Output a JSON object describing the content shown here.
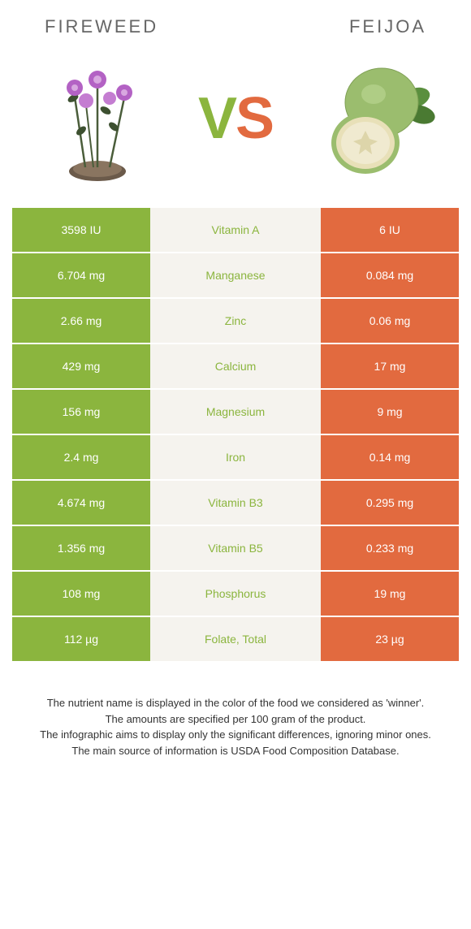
{
  "header": {
    "left_title": "FIREWEED",
    "right_title": "FEIJOA"
  },
  "vs": {
    "v": "V",
    "s": "S"
  },
  "colors": {
    "green": "#8bb53e",
    "orange": "#e26a3f",
    "mid_bg": "#f5f3ee",
    "text_gray": "#666666"
  },
  "table": {
    "rows": [
      {
        "left": "3598 IU",
        "nutrient": "Vitamin A",
        "right": "6 IU",
        "winner": "left"
      },
      {
        "left": "6.704 mg",
        "nutrient": "Manganese",
        "right": "0.084 mg",
        "winner": "left"
      },
      {
        "left": "2.66 mg",
        "nutrient": "Zinc",
        "right": "0.06 mg",
        "winner": "left"
      },
      {
        "left": "429 mg",
        "nutrient": "Calcium",
        "right": "17 mg",
        "winner": "left"
      },
      {
        "left": "156 mg",
        "nutrient": "Magnesium",
        "right": "9 mg",
        "winner": "left"
      },
      {
        "left": "2.4 mg",
        "nutrient": "Iron",
        "right": "0.14 mg",
        "winner": "left"
      },
      {
        "left": "4.674 mg",
        "nutrient": "Vitamin B3",
        "right": "0.295 mg",
        "winner": "left"
      },
      {
        "left": "1.356 mg",
        "nutrient": "Vitamin B5",
        "right": "0.233 mg",
        "winner": "left"
      },
      {
        "left": "108 mg",
        "nutrient": "Phosphorus",
        "right": "19 mg",
        "winner": "left"
      },
      {
        "left": "112 µg",
        "nutrient": "Folate, total",
        "right": "23 µg",
        "winner": "left"
      }
    ]
  },
  "footer": {
    "line1": "The nutrient name is displayed in the color of the food we considered as 'winner'.",
    "line2": "The amounts are specified per 100 gram of the product.",
    "line3": "The infographic aims to display only the significant differences, ignoring minor ones.",
    "line4": "The main source of information is USDA Food Composition Database."
  }
}
